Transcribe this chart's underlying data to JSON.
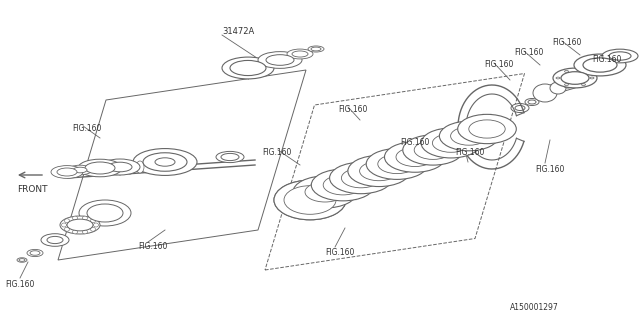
{
  "bg_color": "#ffffff",
  "line_color": "#666666",
  "text_color": "#333333",
  "part_number": "31472A",
  "fig_ref": "FIG.160",
  "catalog_number": "A150001297",
  "front_label": "FRONT"
}
